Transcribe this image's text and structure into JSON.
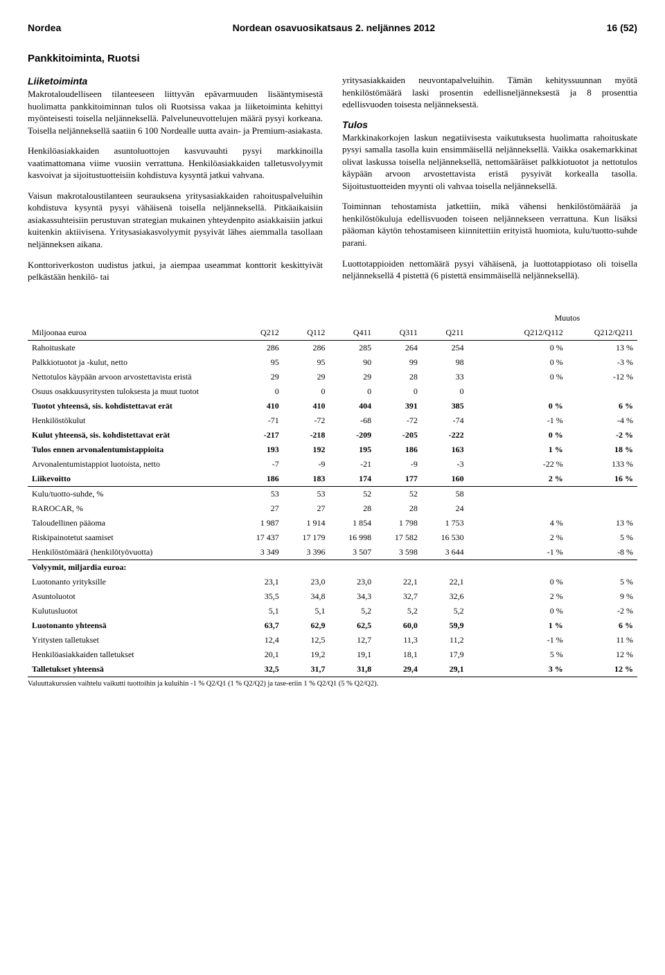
{
  "header": {
    "left": "Nordea",
    "center": "Nordean osavuosikatsaus 2. neljännes 2012",
    "right": "16 (52)"
  },
  "section_title": "Pankkitoiminta, Ruotsi",
  "left_col": {
    "sub1": "Liiketoiminta",
    "p1": "Makrotaloudelliseen tilanteeseen liittyvän epävarmuuden lisääntymisestä huolimatta pankkitoiminnan tulos oli Ruotsissa vakaa ja liiketoiminta kehittyi myönteisesti toisella neljänneksellä. Palveluneuvottelujen määrä pysyi korkeana. Toisella neljänneksellä saatiin 6 100 Nordealle uutta avain- ja Premium-asiakasta.",
    "p2": "Henkilöasiakkaiden asuntoluottojen kasvuvauhti pysyi markkinoilla vaatimattomana viime vuosiin verrattuna. Henkilöasiakkaiden talletusvolyymit kasvoivat ja sijoitustuotteisiin kohdistuva kysyntä jatkui vahvana.",
    "p3": "Vaisun makrotaloustilanteen seurauksena yritysasiakkaiden rahoituspalveluihin kohdistuva kysyntä pysyi vähäisenä toisella neljänneksellä. Pitkäaikaisiin asiakassuhteisiin perustuvan strategian mukainen yhteydenpito asiakkaisiin jatkui kuitenkin aktiivisena. Yritysasiakasvolyymit pysyivät lähes aiemmalla tasollaan neljänneksen aikana.",
    "p4": "Konttoriverkoston uudistus jatkui, ja aiempaa useammat konttorit keskittyivät pelkästään henkilö- tai"
  },
  "right_col": {
    "p1": "yritysasiakkaiden neuvontapalveluihin. Tämän kehityssuunnan myötä henkilöstömäärä laski prosentin edellisneljänneksestä ja 8 prosenttia edellisvuoden toisesta neljänneksestä.",
    "sub1": "Tulos",
    "p2": "Markkinakorkojen laskun negatiivisesta vaikutuksesta huolimatta rahoituskate pysyi samalla tasolla kuin ensimmäisellä neljänneksellä. Vaikka osakemarkkinat olivat laskussa toisella neljänneksellä, nettomääräiset palkkiotuotot ja nettotulos käypään arvoon arvostettavista eristä pysyivät korkealla tasolla. Sijoitustuotteiden myynti oli vahvaa toisella neljänneksellä.",
    "p3": "Toiminnan tehostamista jatkettiin, mikä vähensi henkilöstömäärää ja henkilöstökuluja edellisvuoden toiseen neljännekseen verrattuna. Kun lisäksi pääoman käytön tehostamiseen kiinnitettiin erityistä huomiota, kulu/tuotto-suhde parani.",
    "p4": "Luottotappioiden nettomäärä pysyi vähäisenä, ja luottotappiotaso oli toisella neljänneksellä 4 pistettä (6 pistettä ensimmäisellä neljänneksellä)."
  },
  "table": {
    "header": {
      "lead": "Miljoonaa euroa",
      "q": [
        "Q212",
        "Q112",
        "Q411",
        "Q311",
        "Q211"
      ],
      "muutos": "Muutos",
      "m_cols": [
        "Q212/Q112",
        "Q212/Q211"
      ]
    },
    "rows": [
      {
        "label": "Rahoituskate",
        "v": [
          "286",
          "286",
          "285",
          "264",
          "254"
        ],
        "m": [
          "0 %",
          "13 %"
        ]
      },
      {
        "label": "Palkkiotuotot ja -kulut, netto",
        "v": [
          "95",
          "95",
          "90",
          "99",
          "98"
        ],
        "m": [
          "0 %",
          "-3 %"
        ]
      },
      {
        "label": "Nettotulos käypään arvoon arvostettavista eristä",
        "v": [
          "29",
          "29",
          "29",
          "28",
          "33"
        ],
        "m": [
          "0 %",
          "-12 %"
        ]
      },
      {
        "label": "Osuus osakkuusyritysten tuloksesta ja muut tuotot",
        "v": [
          "0",
          "0",
          "0",
          "0",
          "0"
        ],
        "m": [
          "",
          ""
        ]
      },
      {
        "label": "Tuotot yhteensä, sis. kohdistettavat erät",
        "v": [
          "410",
          "410",
          "404",
          "391",
          "385"
        ],
        "m": [
          "0 %",
          "6 %"
        ],
        "bold": true
      },
      {
        "label": "Henkilöstökulut",
        "v": [
          "-71",
          "-72",
          "-68",
          "-72",
          "-74"
        ],
        "m": [
          "-1 %",
          "-4 %"
        ]
      },
      {
        "label": "Kulut yhteensä, sis. kohdistettavat erät",
        "v": [
          "-217",
          "-218",
          "-209",
          "-205",
          "-222"
        ],
        "m": [
          "0 %",
          "-2 %"
        ],
        "bold": true
      },
      {
        "label": "Tulos ennen arvonalentumistappioita",
        "v": [
          "193",
          "192",
          "195",
          "186",
          "163"
        ],
        "m": [
          "1 %",
          "18 %"
        ],
        "bold": true
      },
      {
        "label": "Arvonalentumistappiot luotoista, netto",
        "v": [
          "-7",
          "-9",
          "-21",
          "-9",
          "-3"
        ],
        "m": [
          "-22 %",
          "133 %"
        ]
      },
      {
        "label": "Liikevoitto",
        "v": [
          "186",
          "183",
          "174",
          "177",
          "160"
        ],
        "m": [
          "2 %",
          "16 %"
        ],
        "bold": true
      },
      {
        "label": "Kulu/tuotto-suhde, %",
        "v": [
          "53",
          "53",
          "52",
          "52",
          "58"
        ],
        "m": [
          "",
          ""
        ],
        "top": true
      },
      {
        "label": "RAROCAR, %",
        "v": [
          "27",
          "27",
          "28",
          "28",
          "24"
        ],
        "m": [
          "",
          ""
        ]
      },
      {
        "label": "Taloudellinen pääoma",
        "v": [
          "1 987",
          "1 914",
          "1 854",
          "1 798",
          "1 753"
        ],
        "m": [
          "4 %",
          "13 %"
        ]
      },
      {
        "label": "Riskipainotetut saamiset",
        "v": [
          "17 437",
          "17 179",
          "16 998",
          "17 582",
          "16 530"
        ],
        "m": [
          "2 %",
          "5 %"
        ]
      },
      {
        "label": "Henkilöstömäärä (henkilötyövuotta)",
        "v": [
          "3 349",
          "3 396",
          "3 507",
          "3 598",
          "3 644"
        ],
        "m": [
          "-1 %",
          "-8 %"
        ]
      },
      {
        "label": "Volyymit, miljardia euroa:",
        "v": [
          "",
          "",
          "",
          "",
          ""
        ],
        "m": [
          "",
          ""
        ],
        "bold": true,
        "top": true
      },
      {
        "label": "Luotonanto yrityksille",
        "v": [
          "23,1",
          "23,0",
          "23,0",
          "22,1",
          "22,1"
        ],
        "m": [
          "0 %",
          "5 %"
        ]
      },
      {
        "label": "Asuntoluotot",
        "v": [
          "35,5",
          "34,8",
          "34,3",
          "32,7",
          "32,6"
        ],
        "m": [
          "2 %",
          "9 %"
        ]
      },
      {
        "label": "Kulutusluotot",
        "v": [
          "5,1",
          "5,1",
          "5,2",
          "5,2",
          "5,2"
        ],
        "m": [
          "0 %",
          "-2 %"
        ]
      },
      {
        "label": "Luotonanto yhteensä",
        "v": [
          "63,7",
          "62,9",
          "62,5",
          "60,0",
          "59,9"
        ],
        "m": [
          "1 %",
          "6 %"
        ],
        "bold": true
      },
      {
        "label": "Yritysten talletukset",
        "v": [
          "12,4",
          "12,5",
          "12,7",
          "11,3",
          "11,2"
        ],
        "m": [
          "-1 %",
          "11 %"
        ]
      },
      {
        "label": "Henkilöasiakkaiden talletukset",
        "v": [
          "20,1",
          "19,2",
          "19,1",
          "18,1",
          "17,9"
        ],
        "m": [
          "5 %",
          "12 %"
        ]
      },
      {
        "label": "Talletukset yhteensä",
        "v": [
          "32,5",
          "31,7",
          "31,8",
          "29,4",
          "29,1"
        ],
        "m": [
          "3 %",
          "12 %"
        ],
        "bold": true,
        "bottom": true
      }
    ]
  },
  "footnote": "Valuuttakurssien vaihtelu vaikutti tuottoihin ja kuluihin -1 % Q2/Q1 (1 % Q2/Q2) ja tase-eriin 1 % Q2/Q1 (5 % Q2/Q2)."
}
